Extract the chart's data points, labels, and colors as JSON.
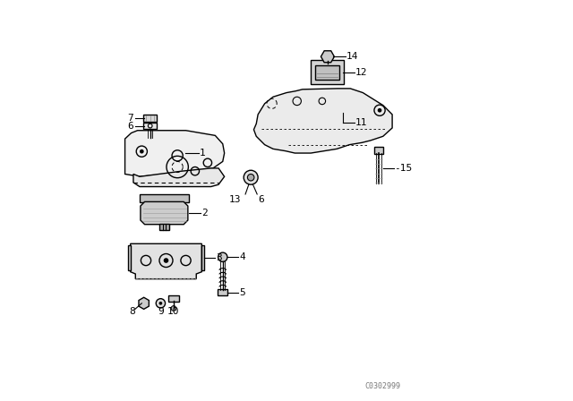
{
  "bg_color": "#ffffff",
  "line_color": "#000000",
  "watermark": "C0302999",
  "figsize": [
    6.4,
    4.48
  ],
  "dpi": 100
}
